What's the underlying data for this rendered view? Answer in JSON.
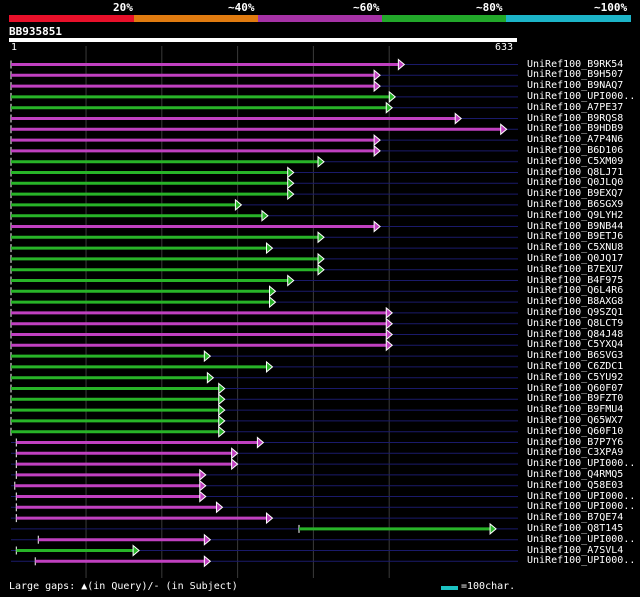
{
  "legend": {
    "items": [
      {
        "label": "20%",
        "color": "#e8102a"
      },
      {
        "label": "~40%",
        "color": "#e07b10"
      },
      {
        "label": "~60%",
        "color": "#a632a6"
      },
      {
        "label": "~80%",
        "color": "#22a82a"
      },
      {
        "label": "~100%",
        "color": "#1cb4c8"
      }
    ]
  },
  "query": {
    "id": "BB935851",
    "start": "1",
    "end": "633"
  },
  "footer": {
    "gaps_text": "Large gaps: ▲(in Query)/- (in Subject)",
    "scale_text": "=100char."
  },
  "chart_data": {
    "type": "alignment",
    "query_length": 633,
    "hits": [
      {
        "label": "UniRef100_B9RK54",
        "color": "magenta",
        "start": 1,
        "end": 520
      },
      {
        "label": "UniRef100_B9H507",
        "color": "magenta",
        "start": 1,
        "end": 488
      },
      {
        "label": "UniRef100_B9NAQ7",
        "color": "magenta",
        "start": 1,
        "end": 488
      },
      {
        "label": "UniRef100_UPI000..",
        "color": "green",
        "start": 1,
        "end": 508
      },
      {
        "label": "UniRef100_A7PE37",
        "color": "green",
        "start": 1,
        "end": 504
      },
      {
        "label": "UniRef100_B9RQS8",
        "color": "magenta",
        "start": 1,
        "end": 595
      },
      {
        "label": "UniRef100_B9HDB9",
        "color": "magenta",
        "start": 1,
        "end": 655
      },
      {
        "label": "UniRef100_A7P4N6",
        "color": "magenta",
        "start": 1,
        "end": 488
      },
      {
        "label": "UniRef100_B6D106",
        "color": "magenta",
        "start": 1,
        "end": 488
      },
      {
        "label": "UniRef100_C5XM09",
        "color": "green",
        "start": 1,
        "end": 414
      },
      {
        "label": "UniRef100_Q8LJ71",
        "color": "green",
        "start": 1,
        "end": 374
      },
      {
        "label": "UniRef100_Q0JLQ0",
        "color": "green",
        "start": 1,
        "end": 374
      },
      {
        "label": "UniRef100_B9EXQ7",
        "color": "green",
        "start": 1,
        "end": 374
      },
      {
        "label": "UniRef100_B6SGX9",
        "color": "green",
        "start": 1,
        "end": 305
      },
      {
        "label": "UniRef100_Q9LYH2",
        "color": "green",
        "start": 1,
        "end": 340
      },
      {
        "label": "UniRef100_B9NB44",
        "color": "magenta",
        "start": 1,
        "end": 488
      },
      {
        "label": "UniRef100_B9ETJ6",
        "color": "green",
        "start": 1,
        "end": 414
      },
      {
        "label": "UniRef100_C5XNU8",
        "color": "green",
        "start": 1,
        "end": 346
      },
      {
        "label": "UniRef100_Q0JQ17",
        "color": "green",
        "start": 1,
        "end": 414
      },
      {
        "label": "UniRef100_B7EXU7",
        "color": "green",
        "start": 1,
        "end": 414
      },
      {
        "label": "UniRef100_B4F975",
        "color": "green",
        "start": 1,
        "end": 374
      },
      {
        "label": "UniRef100_Q6L4R6",
        "color": "green",
        "start": 1,
        "end": 350
      },
      {
        "label": "UniRef100_B8AXG8",
        "color": "green",
        "start": 1,
        "end": 350
      },
      {
        "label": "UniRef100_Q9SZQ1",
        "color": "magenta",
        "start": 1,
        "end": 504
      },
      {
        "label": "UniRef100_Q8LCT9",
        "color": "magenta",
        "start": 1,
        "end": 504
      },
      {
        "label": "UniRef100_Q84J48",
        "color": "magenta",
        "start": 1,
        "end": 504
      },
      {
        "label": "UniRef100_C5YXQ4",
        "color": "magenta",
        "start": 1,
        "end": 504
      },
      {
        "label": "UniRef100_B6SVG3",
        "color": "green",
        "start": 1,
        "end": 264
      },
      {
        "label": "UniRef100_C6ZDC1",
        "color": "green",
        "start": 1,
        "end": 346
      },
      {
        "label": "UniRef100_C5YU92",
        "color": "green",
        "start": 1,
        "end": 268
      },
      {
        "label": "UniRef100_Q60F07",
        "color": "green",
        "start": 1,
        "end": 283
      },
      {
        "label": "UniRef100_B9FZT0",
        "color": "green",
        "start": 1,
        "end": 283
      },
      {
        "label": "UniRef100_B9FMU4",
        "color": "green",
        "start": 1,
        "end": 283
      },
      {
        "label": "UniRef100_Q65WX7",
        "color": "green",
        "start": 1,
        "end": 283
      },
      {
        "label": "UniRef100_Q60F10",
        "color": "green",
        "start": 1,
        "end": 283
      },
      {
        "label": "UniRef100_B7P7Y6",
        "color": "magenta",
        "start": 8,
        "end": 334
      },
      {
        "label": "UniRef100_C3XPA9",
        "color": "magenta",
        "start": 8,
        "end": 300
      },
      {
        "label": "UniRef100_UPI000..",
        "color": "magenta",
        "start": 8,
        "end": 300
      },
      {
        "label": "UniRef100_Q4RMQ5",
        "color": "magenta",
        "start": 8,
        "end": 258
      },
      {
        "label": "UniRef100_Q58E03",
        "color": "magenta",
        "start": 6,
        "end": 258
      },
      {
        "label": "UniRef100_UPI000..",
        "color": "magenta",
        "start": 8,
        "end": 258
      },
      {
        "label": "UniRef100_UPI000..",
        "color": "magenta",
        "start": 8,
        "end": 280
      },
      {
        "label": "UniRef100_B7QE74",
        "color": "magenta",
        "start": 8,
        "end": 346
      },
      {
        "label": "UniRef100_Q8T145",
        "color": "green",
        "start": 381,
        "end": 641
      },
      {
        "label": "UniRef100_UPI000..",
        "color": "magenta",
        "start": 37,
        "end": 264
      },
      {
        "label": "UniRef100_A7SVL4",
        "color": "green",
        "start": 8,
        "end": 170
      },
      {
        "label": "UniRef100_UPI000..",
        "color": "magenta",
        "start": 33,
        "end": 264
      }
    ]
  }
}
